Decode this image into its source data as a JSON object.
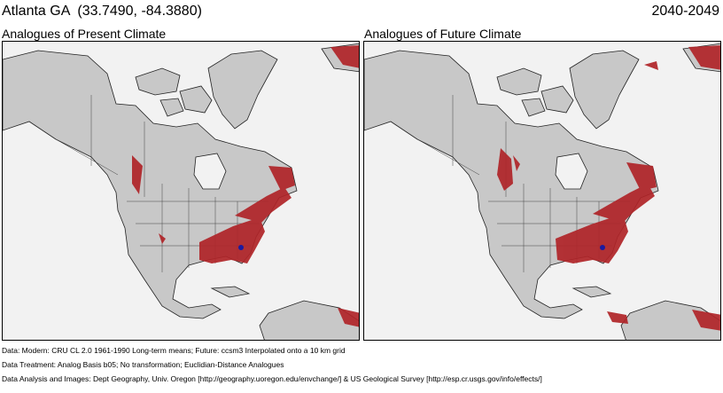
{
  "header": {
    "location": "Atlanta GA  (33.7490, -84.3880)",
    "period": "2040-2049"
  },
  "panels": [
    {
      "label": "Analogues of Present Climate"
    },
    {
      "label": "Analogues of Future Climate"
    }
  ],
  "footer": {
    "line1": "Data:  Modern: CRU CL 2.0 1961-1990 Long-term means; Future: ccsm3 Interpolated onto a 10 km grid",
    "line2": "Data Treatment:  Analog Basis b05; No transformation; Euclidian-Distance Analogues",
    "line3": "Data Analysis and Images:  Dept Geography, Univ. Oregon [http://geography.uoregon.edu/envchange/] & US Geological Survey [http://esp.cr.usgs.gov/info/effects/]"
  },
  "colors": {
    "land": "#c8c8c8",
    "ocean": "#f2f2f2",
    "analogue": "#b02428",
    "site_marker": "#1a1aa0",
    "borders": "#222222"
  }
}
